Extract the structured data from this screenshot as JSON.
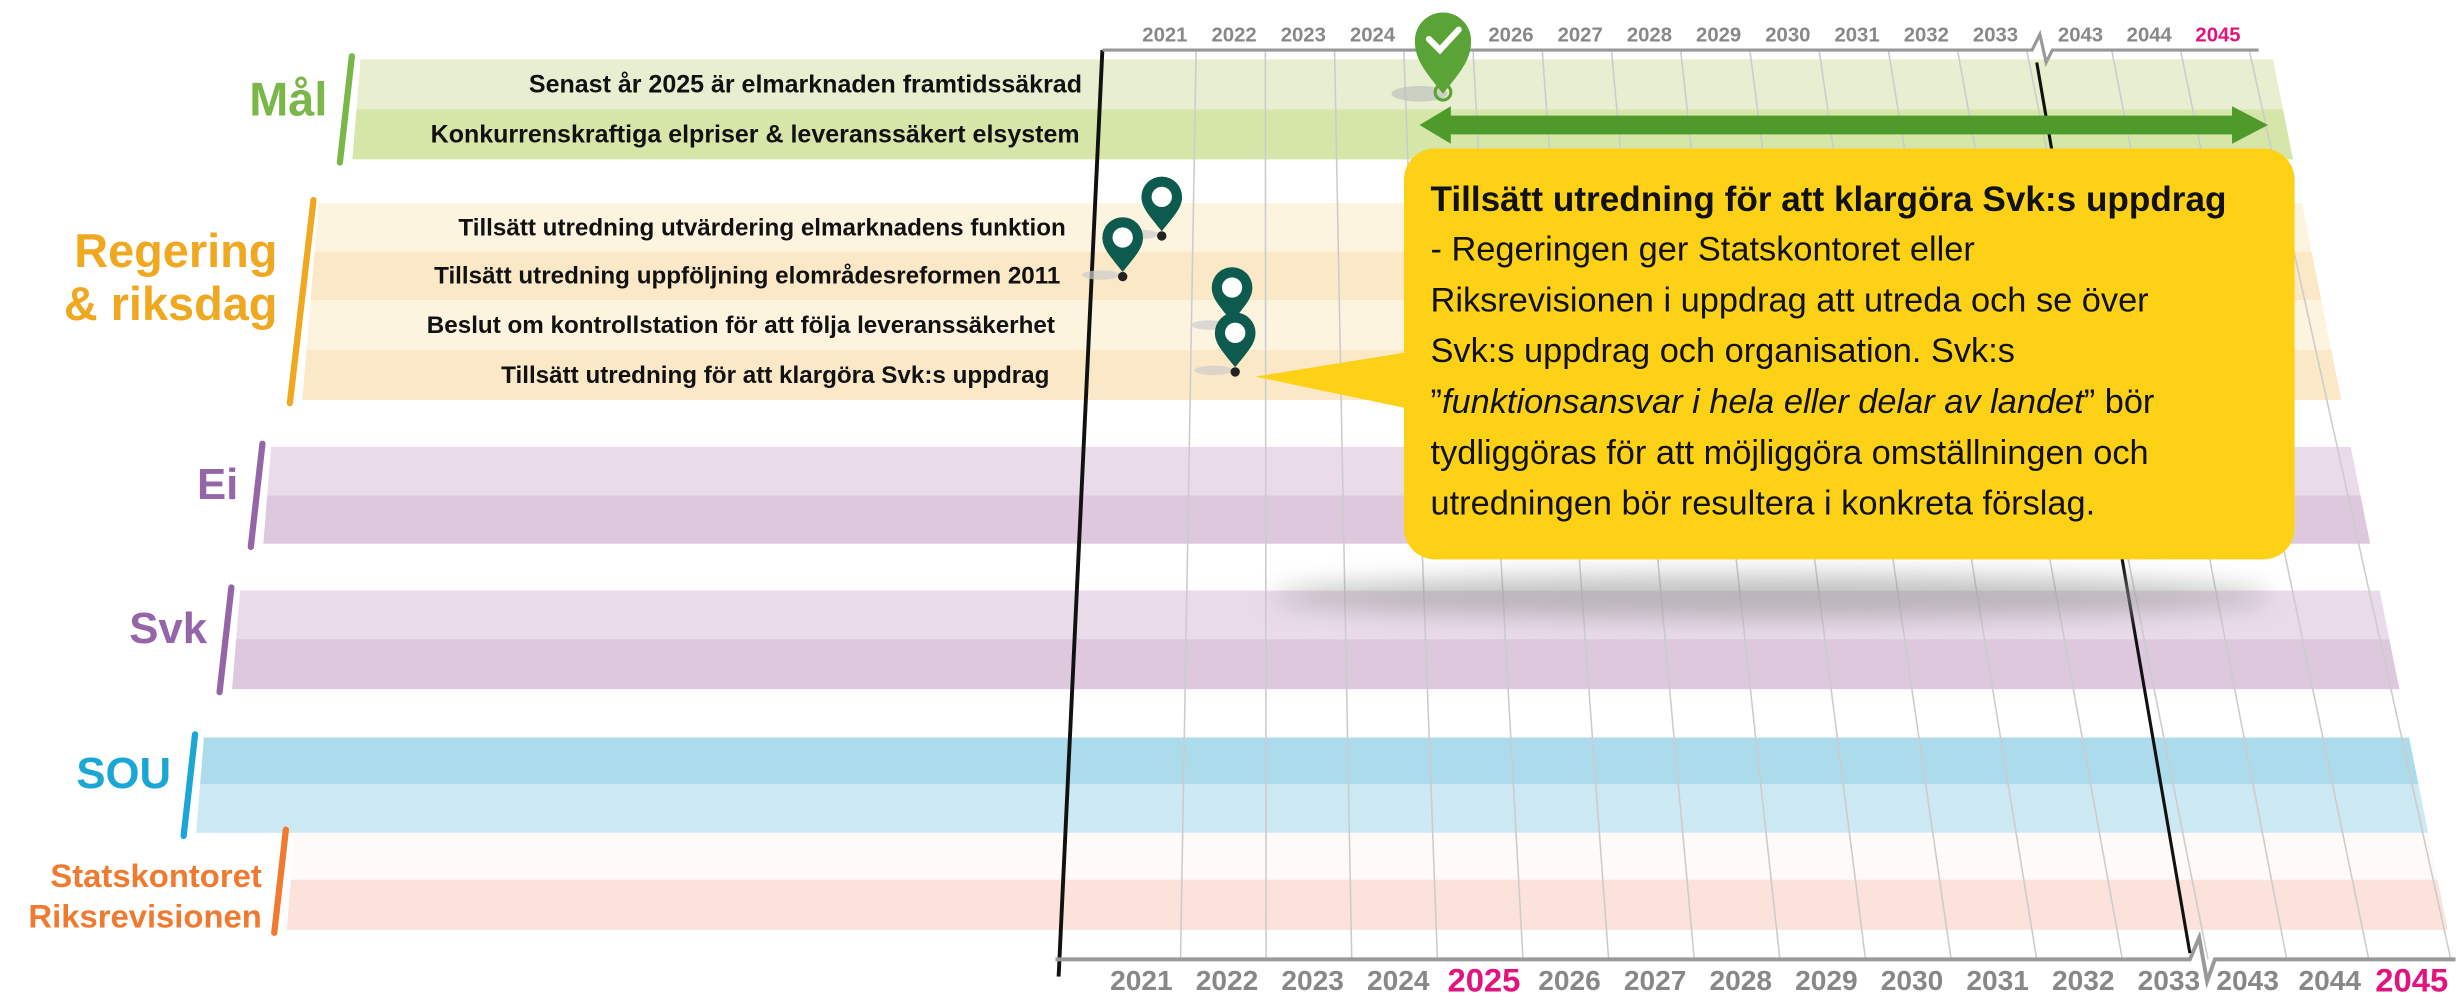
{
  "years_top": [
    "2021",
    "2022",
    "2023",
    "2024",
    "2026",
    "2027",
    "2028",
    "2029",
    "2030",
    "2031",
    "2032",
    "2033",
    "2043",
    "2044",
    "2045"
  ],
  "years_bottom": [
    "2021",
    "2022",
    "2023",
    "2024",
    "2025",
    "2026",
    "2027",
    "2028",
    "2029",
    "2030",
    "2031",
    "2032",
    "2033",
    "2043",
    "2044",
    "2045"
  ],
  "lanes": [
    {
      "label": [
        "Mål"
      ],
      "items": [
        "Senast år 2025 är elmarknaden framtidssäkrad",
        "Konkurrenskraftiga elpriser & leveranssäkert elsystem"
      ]
    },
    {
      "label": [
        "Regering",
        "& riksdag"
      ],
      "items": [
        "Tillsätt utredning utvärdering elmarknadens funktion",
        "Tillsätt utredning uppföljning elområdesreformen 2011",
        "Beslut om kontrollstation för att följa leveranssäkerhet",
        "Tillsätt utredning för att klargöra Svk:s uppdrag"
      ]
    },
    {
      "label": [
        "Ei"
      ],
      "items": []
    },
    {
      "label": [
        "Svk"
      ],
      "items": []
    },
    {
      "label": [
        "SOU"
      ],
      "items": []
    },
    {
      "label": [
        "Statskontoret",
        "Riksrevisionen"
      ],
      "items": []
    }
  ],
  "callout": {
    "title": "Tillsätt utredning för att klargöra Svk:s uppdrag",
    "body": [
      "- Regeringen ger Statskontoret eller",
      "Riksrevisionen i uppdrag att utreda och se över",
      "Svk:s uppdrag och organisation. Svk:s",
      {
        "before": "”",
        "italic": "funktionsansvar i hela eller delar av landet",
        "after": "” bör"
      },
      "tydliggöras för att möjliggöra omställningen och",
      "utredningen bör resultera i konkreta förslag."
    ]
  }
}
